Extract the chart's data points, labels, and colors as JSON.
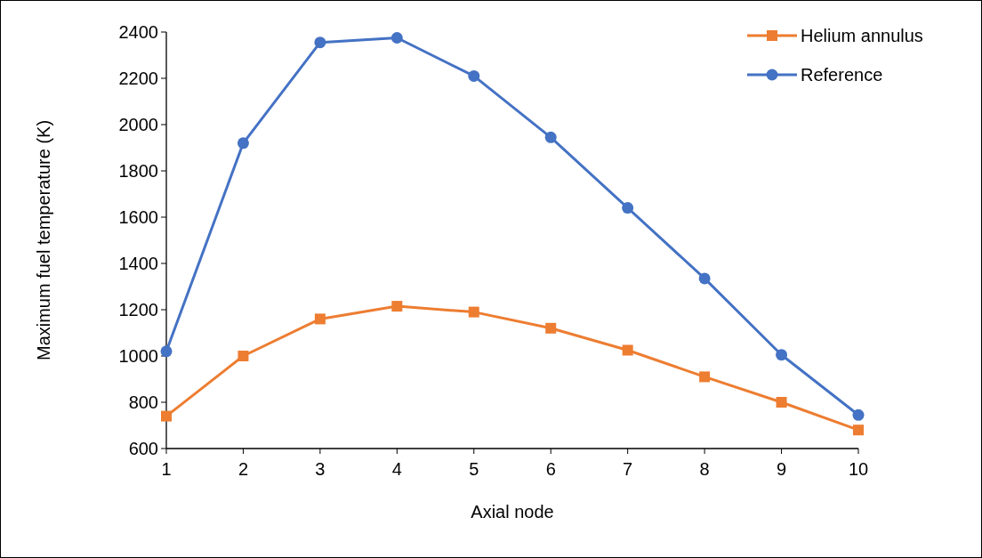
{
  "chart_data": {
    "type": "line",
    "xlabel": "Axial node",
    "ylabel": "Maximum fuel temperature (K)",
    "x": [
      1,
      2,
      3,
      4,
      5,
      6,
      7,
      8,
      9,
      10
    ],
    "xlim": [
      1,
      10
    ],
    "xticks": [
      1,
      2,
      3,
      4,
      5,
      6,
      7,
      8,
      9,
      10
    ],
    "ylim": [
      600,
      2400
    ],
    "yticks": [
      600,
      800,
      1000,
      1200,
      1400,
      1600,
      1800,
      2000,
      2200,
      2400
    ],
    "legend": "top right",
    "grid": false,
    "line_style": "solid",
    "series": [
      {
        "name": "Helium annulus",
        "color": "#ed7d31",
        "marker": "square",
        "values": [
          740,
          1000,
          1160,
          1215,
          1190,
          1120,
          1025,
          910,
          800,
          680
        ]
      },
      {
        "name": "Reference",
        "color": "#4472c4",
        "marker": "circle",
        "values": [
          1020,
          1920,
          2355,
          2375,
          2210,
          1945,
          1640,
          1335,
          1005,
          745
        ]
      }
    ]
  }
}
